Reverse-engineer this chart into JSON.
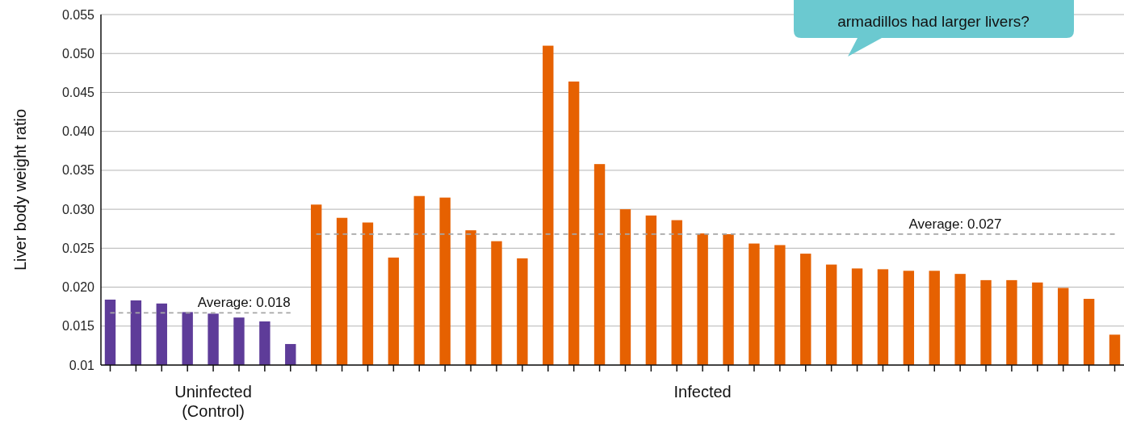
{
  "chart_data": {
    "type": "bar",
    "ylabel": "Liver body weight ratio",
    "categories": [
      null,
      null,
      null,
      null,
      "Uninfected (Control)",
      null,
      null,
      null,
      null,
      null,
      null,
      null,
      null,
      null,
      null,
      null,
      null,
      null,
      null,
      null,
      null,
      null,
      null,
      "Infected",
      null,
      null,
      null,
      null,
      null,
      null,
      null,
      null,
      null,
      null,
      null,
      null,
      null,
      null,
      null,
      null
    ],
    "series": [
      {
        "values": [
          0.0184,
          0.0183,
          0.0179,
          0.0168,
          0.0166,
          0.0161,
          0.0156,
          0.0127,
          0.0306,
          0.0289,
          0.0283,
          0.0238,
          0.0317,
          0.0315,
          0.0273,
          0.0259,
          0.0237,
          0.051,
          0.0464,
          0.0358,
          0.03,
          0.0292,
          0.0286,
          0.0269,
          0.0268,
          0.0256,
          0.0254,
          0.0243,
          0.0229,
          0.0224,
          0.0223,
          0.0221,
          0.0221,
          0.0217,
          0.0209,
          0.0209,
          0.0206,
          0.0199,
          0.0185,
          0.0139
        ],
        "colors": [
          "#5e3c99",
          "#5e3c99",
          "#5e3c99",
          "#5e3c99",
          "#5e3c99",
          "#5e3c99",
          "#5e3c99",
          "#5e3c99",
          "#e66101",
          "#e66101",
          "#e66101",
          "#e66101",
          "#e66101",
          "#e66101",
          "#e66101",
          "#e66101",
          "#e66101",
          "#e66101",
          "#e66101",
          "#e66101",
          "#e66101",
          "#e66101",
          "#e66101",
          "#e66101",
          "#e66101",
          "#e66101",
          "#e66101",
          "#e66101",
          "#e66101",
          "#e66101",
          "#e66101",
          "#e66101",
          "#e66101",
          "#e66101",
          "#e66101",
          "#e66101",
          "#e66101",
          "#e66101",
          "#e66101",
          "#e66101"
        ]
      },
      {
        "type": "line",
        "name": "Average: 0.018",
        "color": "#a6a6a6",
        "line_style": "dashed",
        "values": [
          0.0167,
          0.0167,
          0.0167,
          0.0167,
          0.0167,
          0.0167,
          0.0167,
          0.0167,
          null,
          null,
          null,
          null,
          null,
          null,
          null,
          null,
          null,
          null,
          null,
          null,
          null,
          null,
          null,
          null,
          null,
          null,
          null,
          null,
          null,
          null,
          null,
          null,
          null,
          null,
          null,
          null,
          null,
          null,
          null,
          null
        ]
      },
      {
        "type": "line",
        "name": "Average: 0.027",
        "color": "#a6a6a6",
        "line_style": "dashed",
        "values": [
          null,
          null,
          null,
          null,
          null,
          null,
          null,
          null,
          0.0268,
          0.0268,
          0.0268,
          0.0268,
          0.0268,
          0.0268,
          0.0268,
          0.0268,
          0.0268,
          0.0268,
          0.0268,
          0.0268,
          0.0268,
          0.0268,
          0.0268,
          0.0268,
          0.0268,
          0.0268,
          0.0268,
          0.0268,
          0.0268,
          0.0268,
          0.0268,
          0.0268,
          0.0268,
          0.0268,
          0.0268,
          0.0268,
          0.0268,
          0.0268,
          0.0268,
          0.0268
        ]
      }
    ],
    "ylim": [
      0.01,
      0.055
    ],
    "yticks": [
      0.01,
      0.015,
      {
        "value": 0.02,
        "label": "0.020"
      },
      0.025,
      {
        "value": 0.03,
        "label": "0.030"
      },
      0.035,
      {
        "value": 0.04,
        "label": "0.040"
      },
      0.045,
      {
        "value": 0.05,
        "label": "0.050"
      },
      0.055
    ],
    "grid": "y",
    "annotations": [
      "armadillos had larger livers?"
    ]
  }
}
